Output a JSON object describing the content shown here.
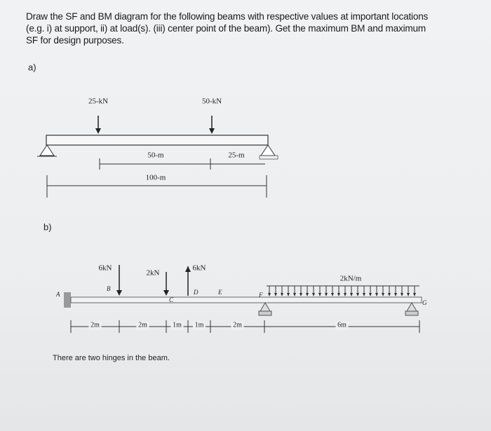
{
  "question": {
    "lines": [
      "Draw the SF and BM diagram for the following beams with respective values at important locations",
      "(e.g. i) at support, ii) at load(s). (iii) center point of the beam). Get the maximum BM and maximum",
      "SF for design purposes."
    ]
  },
  "part_a": {
    "label": "a)",
    "loads": [
      "25-kN",
      "50-kN"
    ],
    "dimensions": [
      "50-m",
      "25-m",
      "100-m"
    ]
  },
  "part_b": {
    "label": "b)",
    "loads": [
      "6kN",
      "2kN",
      "6kN",
      "2kN/m"
    ],
    "points": [
      "A",
      "B",
      "C",
      "D",
      "E",
      "F",
      "G"
    ],
    "dimensions": [
      "2m",
      "2m",
      "1m",
      "1m",
      "2m",
      "6m"
    ]
  },
  "note": "There are two hinges in the beam."
}
